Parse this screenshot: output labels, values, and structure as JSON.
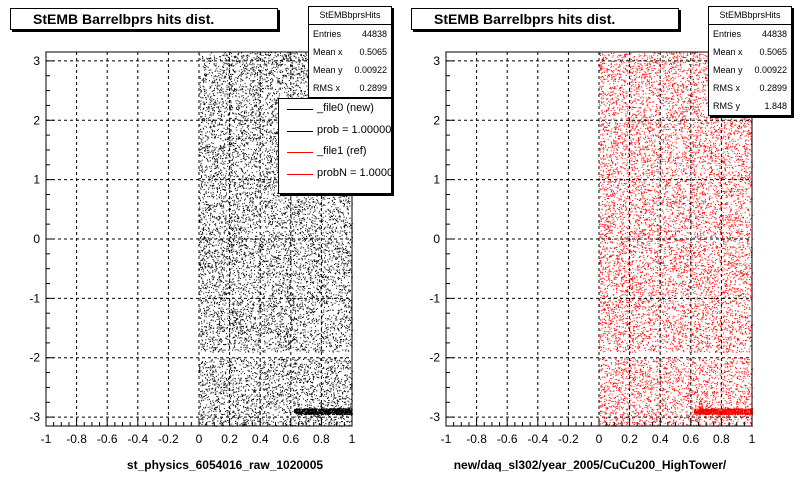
{
  "chart_data": [
    {
      "type": "scatter",
      "title": "StEMB Barrelbprs hits dist.",
      "xlabel": "st_physics_6054016_raw_1020005",
      "ylabel": "",
      "xlim": [
        -1,
        1
      ],
      "ylim": [
        -3.15,
        3.15
      ],
      "x_ticks": [
        "-1",
        "-0.8",
        "-0.6",
        "-0.4",
        "-0.2",
        "0",
        "0.2",
        "0.4",
        "0.6",
        "0.8",
        "1"
      ],
      "y_ticks": [
        "-3",
        "-2",
        "-1",
        "0",
        "1",
        "2",
        "3"
      ],
      "grid": true,
      "marker_color": "#000000",
      "filled_region": {
        "x_range": [
          0,
          1
        ],
        "y_range": [
          -3.15,
          3.15
        ],
        "gap_y": [
          -2.0,
          -1.9
        ]
      },
      "stats": {
        "name": "StEMBbprsHits",
        "rows": [
          {
            "label": "Entries",
            "value": "44838"
          },
          {
            "label": "Mean x",
            "value": "0.5065"
          },
          {
            "label": "Mean y",
            "value": "0.00922"
          },
          {
            "label": "RMS x",
            "value": "0.2899"
          }
        ]
      },
      "legend": {
        "placement": "top-right",
        "entries": [
          {
            "label": "_file0 (new)",
            "color": "#000000"
          },
          {
            "label": "prob = 1.000000",
            "color": "#000000"
          },
          {
            "label": "_file1 (ref)",
            "color": "#ff0000"
          },
          {
            "label": "probN = 1.000000",
            "color": "#ff0000"
          }
        ]
      }
    },
    {
      "type": "scatter",
      "title": "StEMB Barrelbprs hits dist.",
      "xlabel": "new/daq_sl302/year_2005/CuCu200_HighTower/",
      "ylabel": "",
      "xlim": [
        -1,
        1
      ],
      "ylim": [
        -3.15,
        3.15
      ],
      "x_ticks": [
        "-1",
        "-0.8",
        "-0.6",
        "-0.4",
        "-0.2",
        "0",
        "0.2",
        "0.4",
        "0.6",
        "0.8",
        "1"
      ],
      "y_ticks": [
        "-3",
        "-2",
        "-1",
        "0",
        "1",
        "2",
        "3"
      ],
      "grid": true,
      "marker_color": "#ff0000",
      "filled_region": {
        "x_range": [
          0,
          1
        ],
        "y_range": [
          -3.15,
          3.15
        ],
        "gap_y": [
          -2.0,
          -1.9
        ]
      },
      "stats": {
        "name": "StEMBbprsHits",
        "rows": [
          {
            "label": "Entries",
            "value": "44838"
          },
          {
            "label": "Mean x",
            "value": "0.5065"
          },
          {
            "label": "Mean y",
            "value": "0.00922"
          },
          {
            "label": "RMS x",
            "value": "0.2899"
          },
          {
            "label": "RMS y",
            "value": "1.848"
          }
        ]
      }
    }
  ]
}
